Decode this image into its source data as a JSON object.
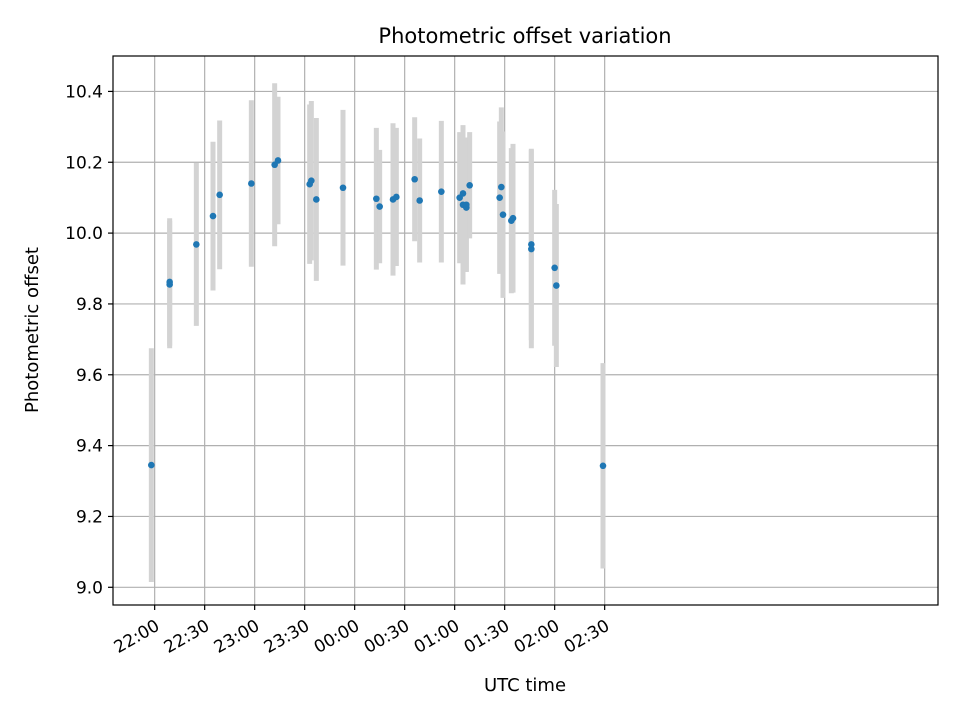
{
  "chart_data": {
    "type": "scatter",
    "title": "Photometric offset variation",
    "xlabel": "UTC time",
    "ylabel": "Photometric offset",
    "grid": true,
    "x_range_minutes": [
      -25,
      470
    ],
    "ylim": [
      8.95,
      10.5
    ],
    "x_ticks": [
      {
        "minutes": 0,
        "label": "22:00"
      },
      {
        "minutes": 30,
        "label": "22:30"
      },
      {
        "minutes": 60,
        "label": "23:00"
      },
      {
        "minutes": 90,
        "label": "23:30"
      },
      {
        "minutes": 120,
        "label": "00:00"
      },
      {
        "minutes": 150,
        "label": "00:30"
      },
      {
        "minutes": 180,
        "label": "01:00"
      },
      {
        "minutes": 210,
        "label": "01:30"
      },
      {
        "minutes": 240,
        "label": "02:00"
      },
      {
        "minutes": 270,
        "label": "02:30"
      }
    ],
    "y_ticks": [
      {
        "value": 9.0,
        "label": "9.0"
      },
      {
        "value": 9.2,
        "label": "9.2"
      },
      {
        "value": 9.4,
        "label": "9.4"
      },
      {
        "value": 9.6,
        "label": "9.6"
      },
      {
        "value": 9.8,
        "label": "9.8"
      },
      {
        "value": 10.0,
        "label": "10.0"
      },
      {
        "value": 10.2,
        "label": "10.2"
      },
      {
        "value": 10.4,
        "label": "10.4"
      }
    ],
    "marker_color": "#1f77b4",
    "errorbar_color": "#d3d3d3",
    "points": [
      {
        "t": "21:58",
        "y": 9.345,
        "err": 0.33
      },
      {
        "t": "22:09",
        "y": 9.855,
        "err": 0.18
      },
      {
        "t": "22:09",
        "y": 9.862,
        "err": 0.18
      },
      {
        "t": "22:25",
        "y": 9.968,
        "err": 0.23
      },
      {
        "t": "22:35",
        "y": 10.048,
        "err": 0.21
      },
      {
        "t": "22:39",
        "y": 10.108,
        "err": 0.21
      },
      {
        "t": "22:58",
        "y": 10.14,
        "err": 0.235
      },
      {
        "t": "23:12",
        "y": 10.193,
        "err": 0.23
      },
      {
        "t": "23:14",
        "y": 10.205,
        "err": 0.18
      },
      {
        "t": "23:33",
        "y": 10.138,
        "err": 0.225
      },
      {
        "t": "23:34",
        "y": 10.148,
        "err": 0.225
      },
      {
        "t": "23:37",
        "y": 10.095,
        "err": 0.23
      },
      {
        "t": "23:53",
        "y": 10.128,
        "err": 0.22
      },
      {
        "t": "00:13",
        "y": 10.097,
        "err": 0.2
      },
      {
        "t": "00:15",
        "y": 10.075,
        "err": 0.16
      },
      {
        "t": "00:23",
        "y": 10.095,
        "err": 0.215
      },
      {
        "t": "00:25",
        "y": 10.102,
        "err": 0.195
      },
      {
        "t": "00:36",
        "y": 10.152,
        "err": 0.175
      },
      {
        "t": "00:39",
        "y": 10.092,
        "err": 0.175
      },
      {
        "t": "00:52",
        "y": 10.117,
        "err": 0.2
      },
      {
        "t": "01:03",
        "y": 10.1,
        "err": 0.185
      },
      {
        "t": "01:05",
        "y": 10.112,
        "err": 0.18
      },
      {
        "t": "01:05",
        "y": 10.08,
        "err": 0.225
      },
      {
        "t": "01:07",
        "y": 10.072,
        "err": 0.18
      },
      {
        "t": "01:07",
        "y": 10.08,
        "err": 0.19
      },
      {
        "t": "01:09",
        "y": 10.135,
        "err": 0.15
      },
      {
        "t": "01:27",
        "y": 10.1,
        "err": 0.215
      },
      {
        "t": "01:28",
        "y": 10.13,
        "err": 0.225
      },
      {
        "t": "01:29",
        "y": 10.052,
        "err": 0.235
      },
      {
        "t": "01:34",
        "y": 10.035,
        "err": 0.205
      },
      {
        "t": "01:35",
        "y": 10.042,
        "err": 0.21
      },
      {
        "t": "01:46",
        "y": 9.955,
        "err": 0.28
      },
      {
        "t": "01:46",
        "y": 9.968,
        "err": 0.27
      },
      {
        "t": "02:00",
        "y": 9.902,
        "err": 0.22
      },
      {
        "t": "02:01",
        "y": 9.852,
        "err": 0.23
      },
      {
        "t": "02:29",
        "y": 9.343,
        "err": 0.29
      }
    ]
  }
}
